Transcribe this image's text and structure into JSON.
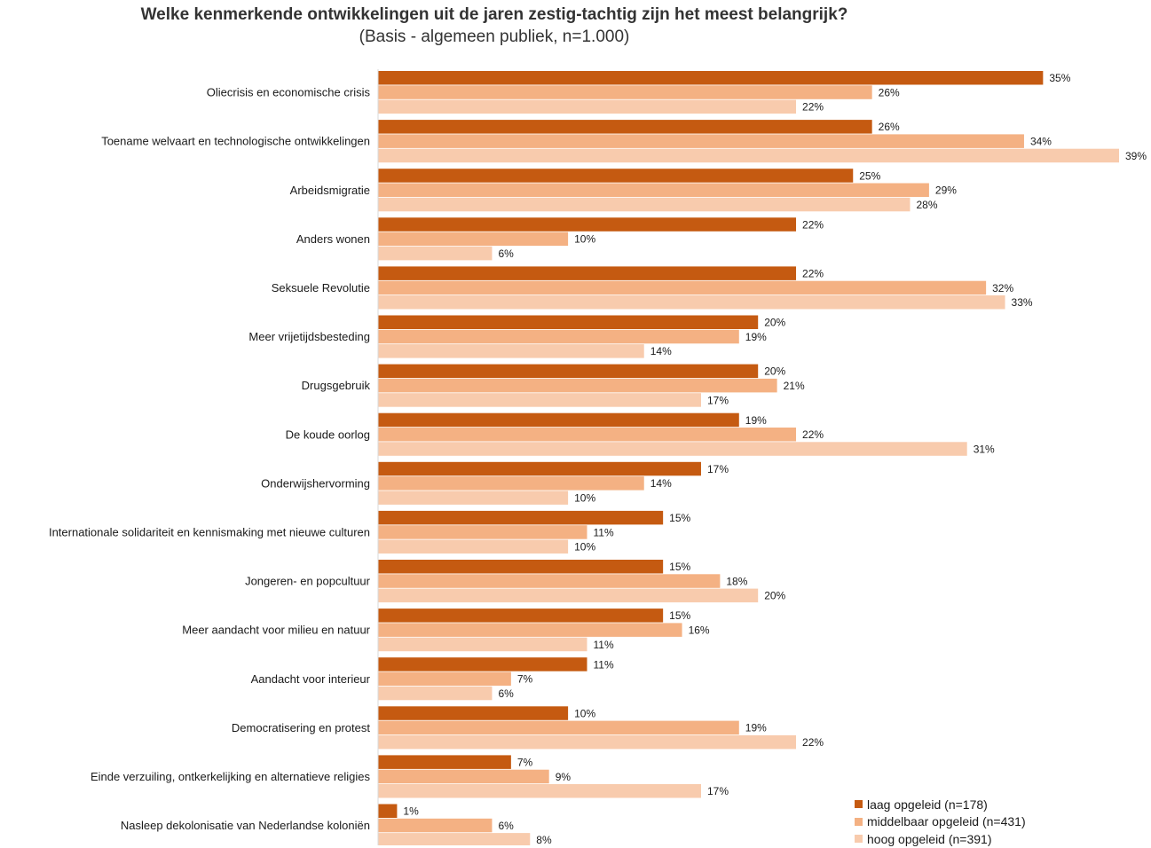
{
  "colors": {
    "laag": "#c55a11",
    "middelbaar": "#f4b183",
    "hoog": "#f8cbad"
  },
  "chart_data": {
    "type": "bar",
    "orientation": "horizontal",
    "title": "Welke kenmerkende ontwikkelingen uit de jaren zestig-tachtig zijn het meest belangrijk?",
    "subtitle": "(Basis - algemeen publiek, n=1.000)",
    "value_suffix": "%",
    "xlim": [
      0,
      39
    ],
    "grid": false,
    "legend_position": "bottom-right",
    "categories": [
      "Oliecrisis en economische crisis",
      "Toename welvaart en technologische ontwikkelingen",
      "Arbeidsmigratie",
      "Anders wonen",
      "Seksuele Revolutie",
      "Meer vrijetijdsbesteding",
      "Drugsgebruik",
      "De koude oorlog",
      "Onderwijshervorming",
      "Internationale solidariteit en kennismaking met nieuwe culturen",
      "Jongeren- en popcultuur",
      "Meer aandacht voor milieu en natuur",
      "Aandacht voor interieur",
      "Democratisering en protest",
      "Einde verzuiling, ontkerkelijking en alternatieve religies",
      "Nasleep dekolonisatie van Nederlandse koloniën"
    ],
    "series": [
      {
        "name": "laag opgeleid (n=178)",
        "color_key": "laag",
        "values": [
          35,
          26,
          25,
          22,
          22,
          20,
          20,
          19,
          17,
          15,
          15,
          15,
          11,
          10,
          7,
          1
        ]
      },
      {
        "name": "middelbaar opgeleid (n=431)",
        "color_key": "middelbaar",
        "values": [
          26,
          34,
          29,
          10,
          32,
          19,
          21,
          22,
          14,
          11,
          18,
          16,
          7,
          19,
          9,
          6
        ]
      },
      {
        "name": "hoog opgeleid (n=391)",
        "color_key": "hoog",
        "values": [
          22,
          39,
          28,
          6,
          33,
          14,
          17,
          31,
          10,
          10,
          20,
          11,
          6,
          22,
          17,
          8
        ]
      }
    ]
  }
}
